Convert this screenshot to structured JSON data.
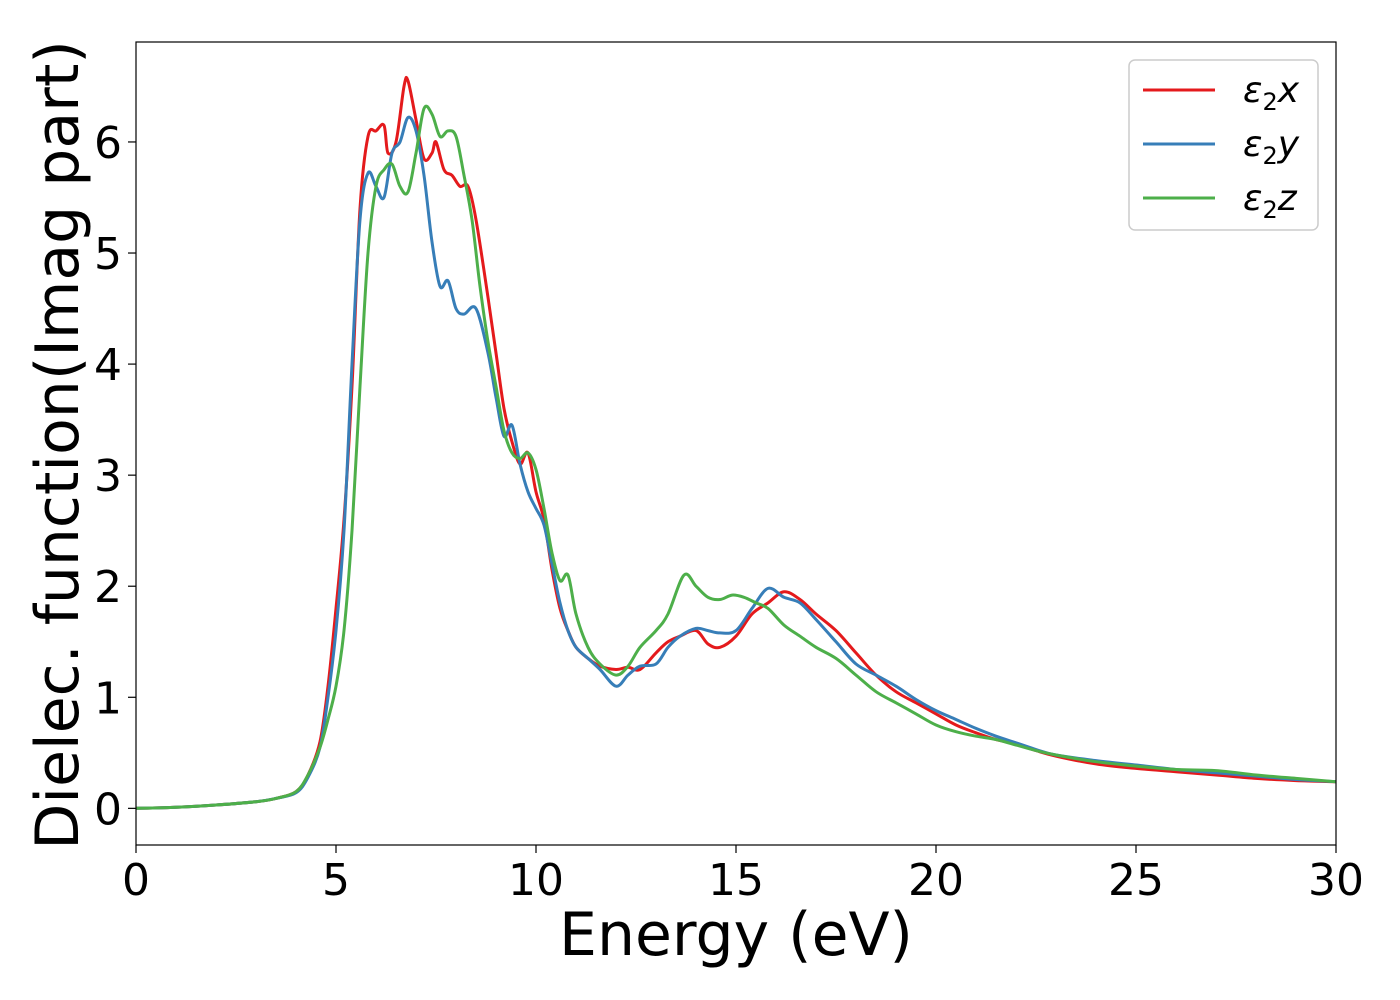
{
  "chart_data": {
    "type": "line",
    "xlabel": "Energy (eV)",
    "ylabel": "Dielec. function(Imag part)",
    "xlim": [
      0,
      30
    ],
    "ylim": [
      -0.33,
      6.9
    ],
    "xticks": [
      "0",
      "5",
      "10",
      "15",
      "20",
      "25",
      "30"
    ],
    "yticks": [
      "0",
      "1",
      "2",
      "3",
      "4",
      "5",
      "6"
    ],
    "grid": false,
    "legend_position": "top-right",
    "legend_symbol": "ε",
    "legend_subscript": "2",
    "series": [
      {
        "name": "ε2x",
        "legend_suffix": "x",
        "color": "#e41a1c",
        "x": [
          0,
          1,
          2,
          3,
          3.5,
          4,
          4.3,
          4.6,
          4.8,
          5.0,
          5.2,
          5.4,
          5.6,
          5.8,
          6.0,
          6.2,
          6.3,
          6.5,
          6.7,
          6.8,
          7.0,
          7.2,
          7.4,
          7.5,
          7.7,
          7.9,
          8.1,
          8.3,
          8.5,
          8.8,
          9.0,
          9.2,
          9.4,
          9.6,
          9.8,
          10.0,
          10.2,
          10.4,
          10.6,
          10.8,
          11.0,
          11.3,
          11.6,
          12.0,
          12.3,
          12.6,
          13.0,
          13.3,
          13.6,
          14.0,
          14.3,
          14.6,
          15.0,
          15.4,
          15.8,
          16.2,
          16.6,
          17.0,
          17.5,
          18.0,
          18.5,
          19.0,
          19.5,
          20.0,
          20.5,
          21.0,
          21.5,
          22.0,
          22.5,
          23.0,
          24.0,
          25.0,
          26.0,
          27.0,
          28.0,
          29.0,
          30.0
        ],
        "y": [
          0,
          0.01,
          0.03,
          0.06,
          0.09,
          0.15,
          0.3,
          0.6,
          1.1,
          1.8,
          2.6,
          3.8,
          5.4,
          6.05,
          6.1,
          6.15,
          5.9,
          6.0,
          6.5,
          6.55,
          6.2,
          5.85,
          5.9,
          6.0,
          5.75,
          5.7,
          5.6,
          5.6,
          5.3,
          4.6,
          4.1,
          3.6,
          3.3,
          3.1,
          3.2,
          2.85,
          2.6,
          2.15,
          1.8,
          1.6,
          1.45,
          1.35,
          1.28,
          1.25,
          1.27,
          1.25,
          1.4,
          1.5,
          1.55,
          1.6,
          1.48,
          1.45,
          1.55,
          1.75,
          1.85,
          1.95,
          1.88,
          1.75,
          1.6,
          1.4,
          1.2,
          1.05,
          0.95,
          0.85,
          0.75,
          0.68,
          0.62,
          0.58,
          0.52,
          0.47,
          0.4,
          0.36,
          0.33,
          0.3,
          0.27,
          0.25,
          0.24
        ]
      },
      {
        "name": "ε2y",
        "legend_suffix": "y",
        "color": "#377eb8",
        "x": [
          0,
          1,
          2,
          3,
          3.5,
          4,
          4.3,
          4.6,
          4.8,
          5.0,
          5.2,
          5.4,
          5.6,
          5.8,
          6.0,
          6.2,
          6.4,
          6.6,
          6.8,
          7.0,
          7.2,
          7.4,
          7.6,
          7.8,
          8.0,
          8.2,
          8.5,
          8.8,
          9.0,
          9.2,
          9.4,
          9.6,
          9.8,
          10.0,
          10.2,
          10.4,
          10.6,
          10.8,
          11.0,
          11.3,
          11.6,
          12.0,
          12.3,
          12.6,
          13.0,
          13.3,
          13.6,
          14.0,
          14.3,
          14.6,
          15.0,
          15.4,
          15.8,
          16.2,
          16.6,
          17.0,
          17.5,
          18.0,
          18.5,
          19.0,
          19.5,
          20.0,
          20.5,
          21.0,
          21.5,
          22.0,
          22.5,
          23.0,
          24.0,
          25.0,
          26.0,
          27.0,
          28.0,
          29.0,
          30.0
        ],
        "y": [
          0,
          0.01,
          0.03,
          0.06,
          0.09,
          0.14,
          0.28,
          0.55,
          1.0,
          1.6,
          2.5,
          4.0,
          5.3,
          5.72,
          5.6,
          5.5,
          5.9,
          6.0,
          6.22,
          6.1,
          5.7,
          5.1,
          4.7,
          4.75,
          4.5,
          4.45,
          4.5,
          4.1,
          3.7,
          3.35,
          3.45,
          3.1,
          2.85,
          2.7,
          2.55,
          2.2,
          1.85,
          1.6,
          1.45,
          1.35,
          1.25,
          1.1,
          1.2,
          1.28,
          1.3,
          1.45,
          1.55,
          1.62,
          1.6,
          1.58,
          1.6,
          1.8,
          1.98,
          1.9,
          1.85,
          1.7,
          1.5,
          1.3,
          1.2,
          1.1,
          0.98,
          0.88,
          0.8,
          0.72,
          0.65,
          0.59,
          0.53,
          0.48,
          0.43,
          0.39,
          0.35,
          0.32,
          0.29,
          0.26,
          0.24
        ]
      },
      {
        "name": "ε2z",
        "legend_suffix": "z",
        "color": "#4daf4a",
        "x": [
          0,
          1,
          2,
          3,
          3.5,
          4,
          4.3,
          4.6,
          4.8,
          5.0,
          5.2,
          5.4,
          5.6,
          5.8,
          6.0,
          6.2,
          6.4,
          6.6,
          6.8,
          7.0,
          7.2,
          7.4,
          7.6,
          7.8,
          8.0,
          8.2,
          8.4,
          8.6,
          8.8,
          9.0,
          9.2,
          9.4,
          9.6,
          9.8,
          10.0,
          10.2,
          10.4,
          10.6,
          10.8,
          11.0,
          11.3,
          11.6,
          12.0,
          12.3,
          12.6,
          13.0,
          13.3,
          13.7,
          14.0,
          14.3,
          14.6,
          14.9,
          15.2,
          15.5,
          15.8,
          16.2,
          16.6,
          17.0,
          17.5,
          18.0,
          18.5,
          19.0,
          19.5,
          20.0,
          20.5,
          21.0,
          21.5,
          22.0,
          22.5,
          23.0,
          24.0,
          25.0,
          26.0,
          27.0,
          28.0,
          29.0,
          30.0
        ],
        "y": [
          0,
          0.01,
          0.03,
          0.06,
          0.09,
          0.15,
          0.3,
          0.55,
          0.8,
          1.1,
          1.6,
          2.5,
          3.8,
          5.0,
          5.6,
          5.75,
          5.8,
          5.6,
          5.55,
          5.9,
          6.3,
          6.25,
          6.05,
          6.1,
          6.05,
          5.7,
          5.3,
          4.7,
          4.2,
          3.8,
          3.4,
          3.2,
          3.15,
          3.2,
          3.05,
          2.7,
          2.3,
          2.05,
          2.1,
          1.75,
          1.45,
          1.3,
          1.2,
          1.28,
          1.45,
          1.6,
          1.75,
          2.1,
          2.0,
          1.9,
          1.88,
          1.92,
          1.9,
          1.85,
          1.8,
          1.65,
          1.55,
          1.45,
          1.35,
          1.2,
          1.05,
          0.95,
          0.85,
          0.75,
          0.69,
          0.65,
          0.62,
          0.57,
          0.52,
          0.48,
          0.42,
          0.38,
          0.35,
          0.34,
          0.3,
          0.27,
          0.24
        ]
      }
    ]
  }
}
